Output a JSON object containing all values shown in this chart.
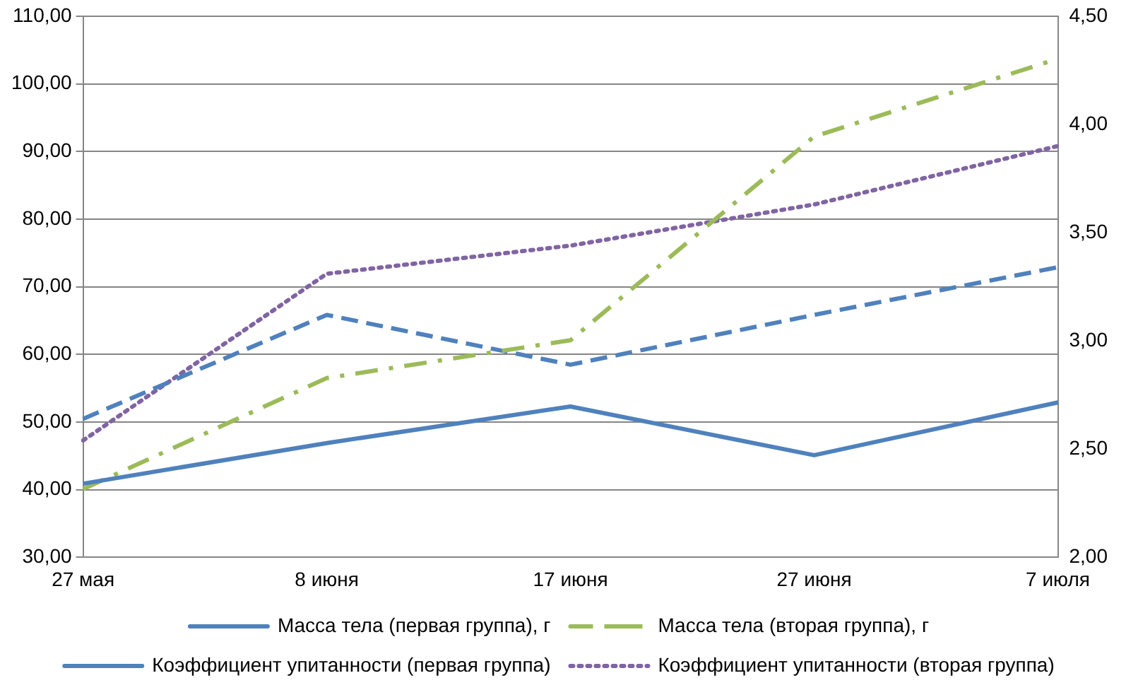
{
  "chart_data": {
    "type": "line",
    "categories": [
      "27 мая",
      "8 июня",
      "17 июня",
      "27 июня",
      "7 июля"
    ],
    "series": [
      {
        "name": "Масса тела (первая группа), г",
        "color": "#4f81bd",
        "line_style": "solid",
        "values": [
          40.9,
          46.9,
          52.3,
          45.1,
          52.9
        ]
      },
      {
        "name": "Масса тела (вторая группа), г",
        "color": "#9bbb59",
        "line_style": "dashdot",
        "values": [
          40.1,
          56.5,
          62.1,
          92.2,
          103.7
        ]
      },
      {
        "name": "Коэффициент упитанности (первая группа)",
        "color": "#4f81bd",
        "line_style": "dashed",
        "axis": "y2",
        "values": [
          2.64,
          3.12,
          2.89,
          3.12,
          3.34
        ]
      },
      {
        "name": "Коэффициент упитанности (вторая группа)",
        "color": "#8064a2",
        "line_style": "dotted",
        "axis": "y2",
        "values": [
          2.54,
          3.31,
          3.44,
          3.63,
          3.9
        ]
      }
    ],
    "ylim": [
      30,
      110
    ],
    "yticks": [
      {
        "value": 30,
        "label": "30,00"
      },
      {
        "value": 40,
        "label": "40,00"
      },
      {
        "value": 50,
        "label": "50,00"
      },
      {
        "value": 60,
        "label": "60,00"
      },
      {
        "value": 70,
        "label": "70,00"
      },
      {
        "value": 80,
        "label": "80,00"
      },
      {
        "value": 90,
        "label": "90,00"
      },
      {
        "value": 100,
        "label": "100,00"
      },
      {
        "value": 110,
        "label": "110,00"
      }
    ],
    "y2lim": [
      2,
      4.5
    ],
    "y2ticks": [
      {
        "value": 2,
        "label": "2,00"
      },
      {
        "value": 2.5,
        "label": "2,50"
      },
      {
        "value": 3,
        "label": "3,00"
      },
      {
        "value": 3.5,
        "label": "3,50"
      },
      {
        "value": 4,
        "label": "4,00"
      },
      {
        "value": 4.5,
        "label": "4,50"
      }
    ],
    "grid": "y",
    "legend": "bottom",
    "marker": "none"
  }
}
